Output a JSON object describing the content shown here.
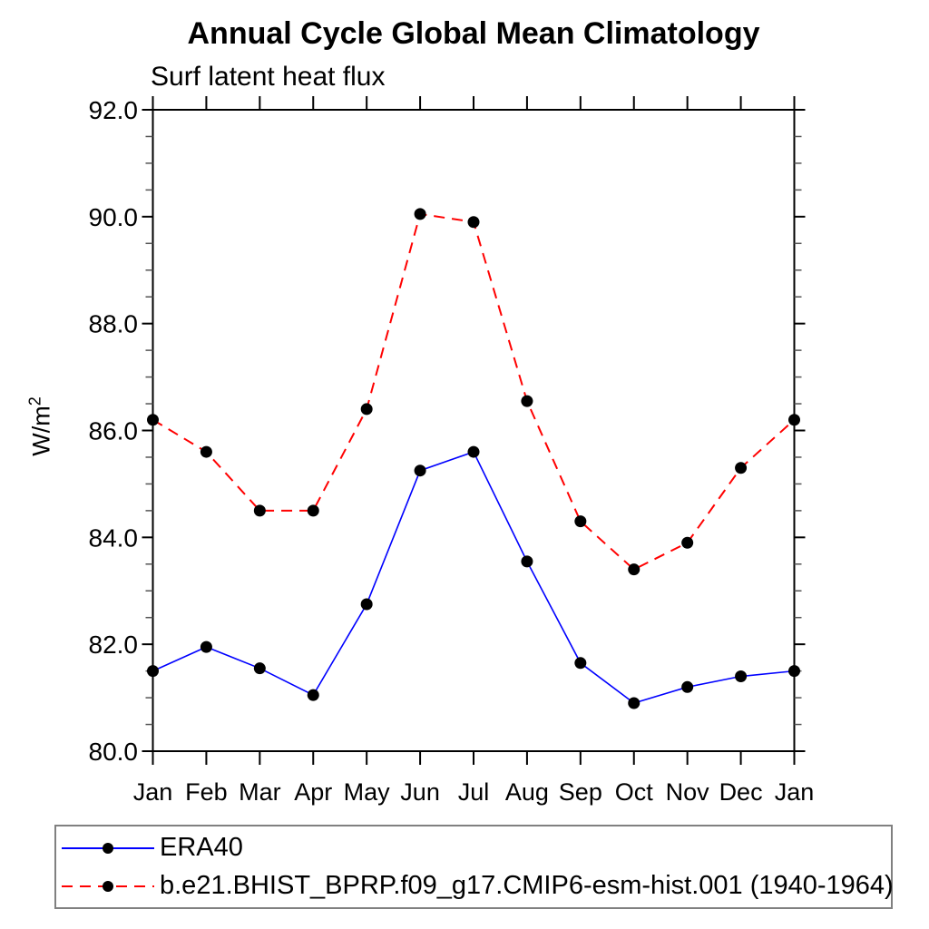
{
  "header": {
    "title": "Annual Cycle Global Mean Climatology",
    "subtitle": "Surf latent heat flux"
  },
  "y_axis": {
    "unit_base": "W/m",
    "unit_exponent": "2"
  },
  "chart_data": {
    "type": "line",
    "title": "Annual Cycle Global Mean Climatology",
    "subtitle": "Surf latent heat flux",
    "ylabel": "W/m²",
    "xlabel": "",
    "categories": [
      "Jan",
      "Feb",
      "Mar",
      "Apr",
      "May",
      "Jun",
      "Jul",
      "Aug",
      "Sep",
      "Oct",
      "Nov",
      "Dec",
      "Jan"
    ],
    "series": [
      {
        "name": "ERA40",
        "color": "#0000ff",
        "line_style": "solid",
        "marker": "circle",
        "marker_color": "#000000",
        "values": [
          81.5,
          81.95,
          81.55,
          81.05,
          82.75,
          85.25,
          85.6,
          83.55,
          81.65,
          80.9,
          81.2,
          81.4,
          81.5
        ]
      },
      {
        "name": "b.e21.BHIST_BPRP.f09_g17.CMIP6-esm-hist.001 (1940-1964)",
        "color": "#ff0000",
        "line_style": "dashed",
        "marker": "circle",
        "marker_color": "#000000",
        "values": [
          86.2,
          85.6,
          84.5,
          84.5,
          86.4,
          90.05,
          89.9,
          86.55,
          84.3,
          83.4,
          83.9,
          85.3,
          86.2
        ]
      }
    ],
    "ylim": [
      80.0,
      92.0
    ],
    "ytick_major": 2.0,
    "ytick_minor": 0.5,
    "ytick_labels": [
      "80.0",
      "82.0",
      "84.0",
      "86.0",
      "88.0",
      "90.0",
      "92.0"
    ],
    "grid": false,
    "legend_position": "bottom-box"
  }
}
